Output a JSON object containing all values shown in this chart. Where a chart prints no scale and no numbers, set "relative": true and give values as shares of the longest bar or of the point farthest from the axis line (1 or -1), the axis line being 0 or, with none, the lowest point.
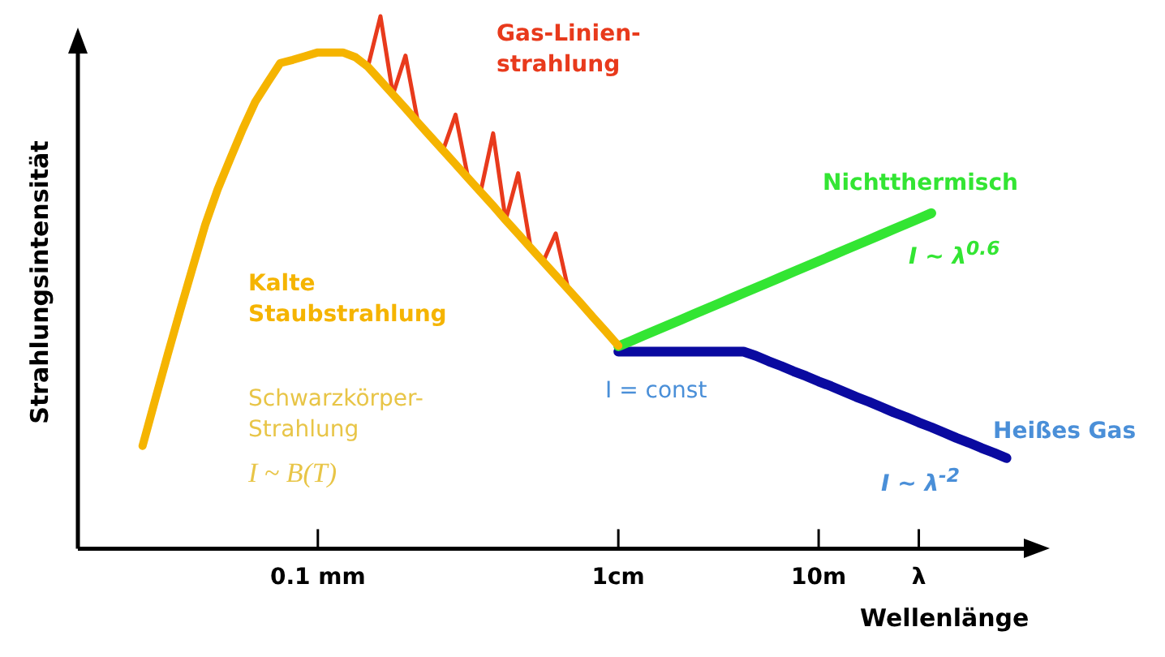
{
  "chart_data": {
    "type": "line",
    "relative": true,
    "xlabel": "Wellenlänge",
    "ylabel": "Strahlungsintensität",
    "categories": [
      null,
      null,
      null,
      null,
      null,
      null,
      null,
      null,
      null,
      null,
      null,
      null,
      null,
      null,
      null,
      null,
      null,
      null,
      "0.1 mm",
      null,
      null,
      null,
      null,
      null,
      null,
      null,
      null,
      null,
      null,
      null,
      null,
      null,
      null,
      null,
      null,
      null,
      null,
      null,
      null,
      null,
      null,
      null,
      "1cm",
      null,
      null,
      null,
      null,
      null,
      null,
      null,
      null,
      null,
      null,
      null,
      null,
      null,
      null,
      null,
      "10m",
      null,
      null,
      null,
      null,
      null,
      null,
      null,
      "λ",
      null,
      null,
      null,
      null,
      null,
      null,
      null,
      null
    ],
    "marker": "none",
    "line_style": "solid",
    "grid": false,
    "series": [
      {
        "name": "Kalte Staubstrahlung",
        "color": "#f5b400",
        "values": [
          null,
          null,
          null,
          null,
          0.193,
          0.279,
          0.364,
          0.447,
          0.528,
          0.608,
          0.675,
          0.732,
          0.788,
          0.839,
          0.876,
          0.912,
          0.918,
          0.925,
          0.932,
          0.932,
          0.932,
          0.923,
          0.905,
          0.879,
          0.853,
          0.827,
          0.8,
          0.774,
          0.748,
          0.722,
          0.696,
          0.67,
          0.644,
          0.617,
          0.591,
          0.565,
          0.539,
          0.513,
          0.487,
          0.461,
          0.434,
          0.408,
          0.381,
          null,
          null,
          null,
          null,
          null,
          null,
          null,
          null,
          null,
          null,
          null,
          null,
          null,
          null,
          null,
          null,
          null,
          null,
          null,
          null,
          null,
          null,
          null,
          null,
          null,
          null,
          null,
          null,
          null,
          null,
          null,
          null
        ]
      },
      {
        "name": "Gas-Linien-strahlung",
        "color": "#e83a1c",
        "values": [
          null,
          null,
          null,
          null,
          null,
          null,
          null,
          null,
          null,
          null,
          null,
          null,
          null,
          null,
          null,
          null,
          null,
          null,
          null,
          null,
          null,
          null,
          0.905,
          1.0,
          0.853,
          0.926,
          0.8,
          null,
          0.748,
          0.815,
          0.696,
          0.67,
          0.78,
          0.617,
          0.705,
          0.565,
          0.539,
          0.592,
          0.487,
          null,
          null,
          null,
          null,
          null,
          null,
          null,
          null,
          null,
          null,
          null,
          null,
          null,
          null,
          null,
          null,
          null,
          null,
          null,
          null,
          null,
          null,
          null,
          null,
          null,
          null,
          null,
          null,
          null,
          null,
          null,
          null,
          null,
          null,
          null,
          null
        ]
      },
      {
        "name": "Nichtthermisch",
        "color": "#33e533",
        "values": [
          null,
          null,
          null,
          null,
          null,
          null,
          null,
          null,
          null,
          null,
          null,
          null,
          null,
          null,
          null,
          null,
          null,
          null,
          null,
          null,
          null,
          null,
          null,
          null,
          null,
          null,
          null,
          null,
          null,
          null,
          null,
          null,
          null,
          null,
          null,
          null,
          null,
          null,
          null,
          null,
          null,
          null,
          0.38,
          0.39,
          0.4,
          0.41,
          0.42,
          0.43,
          0.44,
          0.45,
          0.46,
          0.47,
          0.48,
          0.49,
          0.5,
          0.51,
          0.52,
          0.53,
          0.54,
          0.55,
          0.56,
          0.57,
          0.58,
          0.59,
          0.6,
          0.61,
          0.62,
          0.63,
          null,
          null,
          null,
          null,
          null,
          null,
          null
        ]
      },
      {
        "name": "Heißes Gas",
        "color": "#0a0aa0",
        "values": [
          null,
          null,
          null,
          null,
          null,
          null,
          null,
          null,
          null,
          null,
          null,
          null,
          null,
          null,
          null,
          null,
          null,
          null,
          null,
          null,
          null,
          null,
          null,
          null,
          null,
          null,
          null,
          null,
          null,
          null,
          null,
          null,
          null,
          null,
          null,
          null,
          null,
          null,
          null,
          null,
          null,
          null,
          0.37,
          0.37,
          0.37,
          0.37,
          0.37,
          0.37,
          0.37,
          0.37,
          0.37,
          0.37,
          0.37,
          0.362,
          0.352,
          0.343,
          0.333,
          0.324,
          0.314,
          0.305,
          0.295,
          0.285,
          0.276,
          0.266,
          0.256,
          0.247,
          0.237,
          0.228,
          0.218,
          0.208,
          0.199,
          0.189,
          0.18,
          0.17,
          null
        ]
      }
    ],
    "annotations": [
      "Schwarzkörper-Strahlung",
      "I ~ B(T)",
      "I = const",
      "I ~ λ$^{0.6}$",
      "I ~ λ$^{-2}$"
    ]
  }
}
